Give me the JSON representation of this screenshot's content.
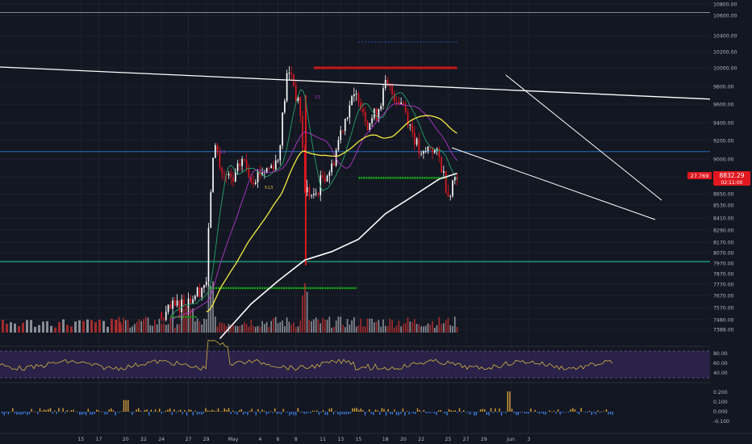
{
  "chart_data": {
    "type": "candlestick",
    "price_axis": {
      "labels": [
        "10800.00",
        "10600.00",
        "10400.00",
        "10200.00",
        "10000.00",
        "9800.00",
        "9600.00",
        "9400.00",
        "9200.00",
        "9000.00",
        "8800.00",
        "8650.00",
        "8530.00",
        "8410.00",
        "8290.00",
        "8170.00",
        "8070.00",
        "7970.00",
        "7870.00",
        "7770.00",
        "7670.00",
        "7570.00",
        "7480.00",
        "7388.00"
      ],
      "values": [
        10800,
        10600,
        10400,
        10200,
        10000,
        9800,
        9600,
        9400,
        9200,
        9000,
        8800,
        8650,
        8530,
        8410,
        8290,
        8170,
        8070,
        7970,
        7870,
        7770,
        7670,
        7570,
        7480,
        7388
      ]
    },
    "time_axis": {
      "labels": [
        "15",
        "17",
        "20",
        "22",
        "24",
        "27",
        "29",
        "May",
        "4",
        "6",
        "8",
        "11",
        "13",
        "15",
        "18",
        "20",
        "22",
        "25",
        "27",
        "29",
        "Jun",
        "3"
      ],
      "days": [
        -16,
        -14,
        -11,
        -9,
        -7,
        -4,
        -2,
        1,
        4,
        6,
        8,
        11,
        13,
        15,
        18,
        20,
        22,
        25,
        27,
        29,
        32,
        34
      ]
    },
    "current_price": "8832.29",
    "price_change": "27.769",
    "countdown": "02:11:00",
    "rsi_labels": [
      "80.00",
      "60.00",
      "40.00"
    ],
    "rsi_values": [
      80,
      60,
      40
    ],
    "macd_labels": [
      "0.200",
      "0.100",
      "0.000",
      "-0.100"
    ],
    "macd_values": [
      0.2,
      0.1,
      0,
      -0.1
    ],
    "annotations": [
      "13",
      "13",
      "513"
    ],
    "colors": {
      "background": "#131722",
      "up": "#ffffff",
      "down": "#e0171f",
      "ema_short": "#26a269",
      "ema_mid": "#b037c9",
      "ema_long": "#f5ec42",
      "ema_200": "#ffffff",
      "support_green": "#14b314",
      "resistance_red": "#c41818",
      "horizontal_blue": "#2a7fd6",
      "horizontal_teal": "#1fd5a0",
      "rsi_band": "#3a2a63"
    }
  }
}
